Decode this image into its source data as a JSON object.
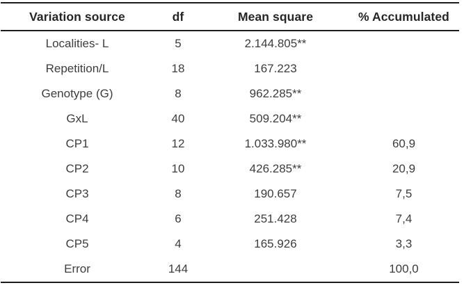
{
  "table": {
    "columns": [
      {
        "label": "Variation source"
      },
      {
        "label": "df"
      },
      {
        "label": "Mean square"
      },
      {
        "label": "% Accumulated"
      }
    ],
    "rows": [
      {
        "source": "Localities- L",
        "df": "5",
        "mean_square": "2.144.805**",
        "pct_accumulated": ""
      },
      {
        "source": "Repetition/L",
        "df": "18",
        "mean_square": "167.223",
        "pct_accumulated": ""
      },
      {
        "source": "Genotype (G)",
        "df": "8",
        "mean_square": "962.285**",
        "pct_accumulated": ""
      },
      {
        "source": "GxL",
        "df": "40",
        "mean_square": "509.204**",
        "pct_accumulated": ""
      },
      {
        "source": "CP1",
        "df": "12",
        "mean_square": "1.033.980**",
        "pct_accumulated": "60,9"
      },
      {
        "source": "CP2",
        "df": "10",
        "mean_square": "426.285**",
        "pct_accumulated": "20,9"
      },
      {
        "source": "CP3",
        "df": "8",
        "mean_square": "190.657",
        "pct_accumulated": "7,5"
      },
      {
        "source": "CP4",
        "df": "6",
        "mean_square": "251.428",
        "pct_accumulated": "7,4"
      },
      {
        "source": "CP5",
        "df": "4",
        "mean_square": "165.926",
        "pct_accumulated": "3,3"
      },
      {
        "source": "Error",
        "df": "144",
        "mean_square": "",
        "pct_accumulated": "100,0"
      }
    ]
  }
}
